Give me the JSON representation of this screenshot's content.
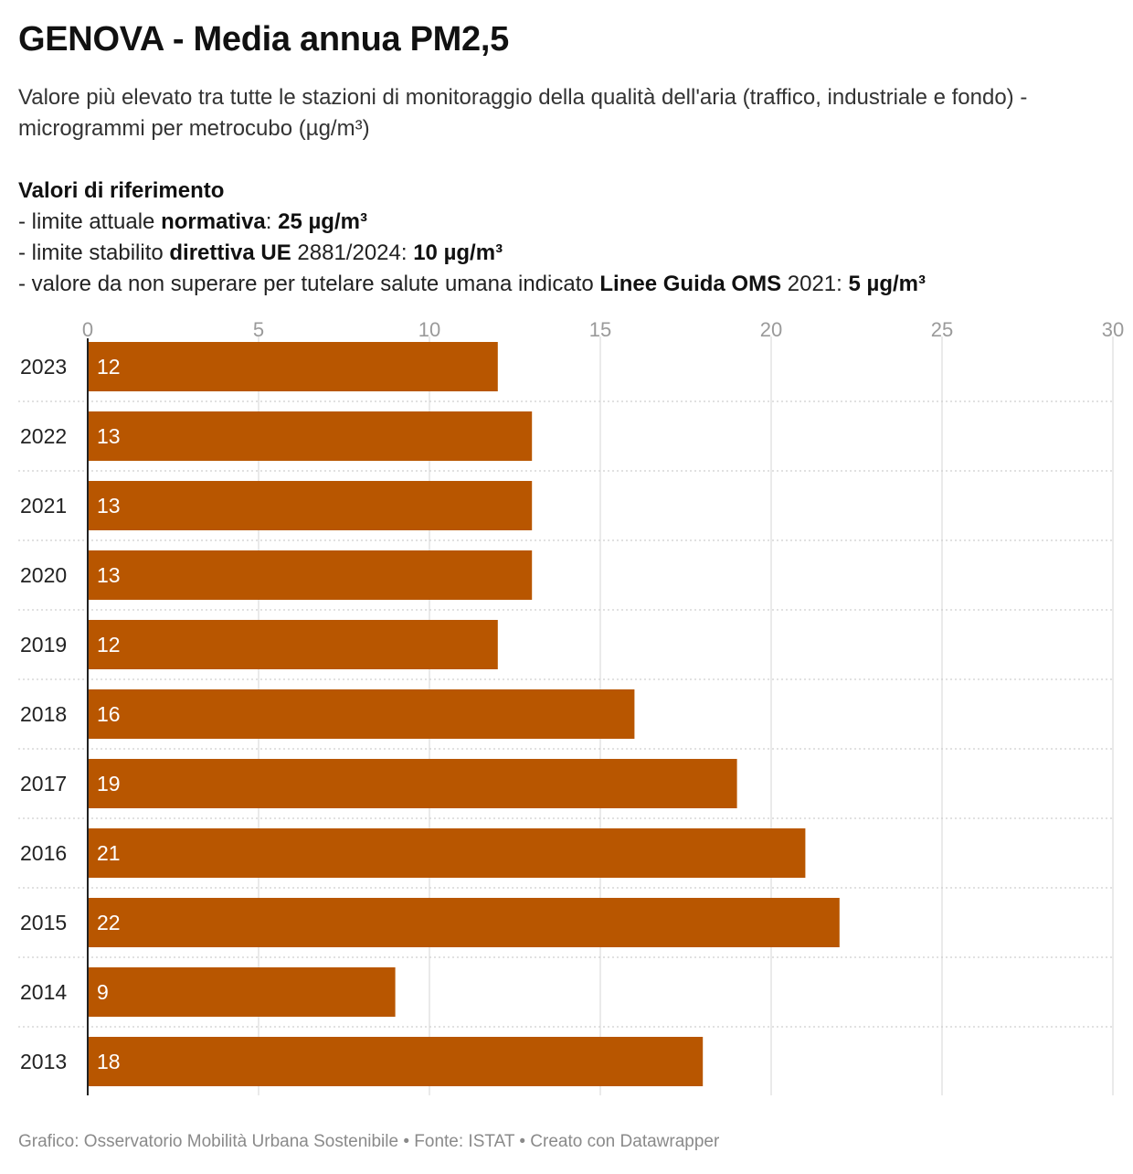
{
  "header": {
    "title": "GENOVA - Media annua PM2,5",
    "subtitle": "Valore più elevato tra tutte le stazioni di monitoraggio della qualità dell'aria (traffico, industriale e fondo) - microgrammi per metrocubo (µg/m³)"
  },
  "references": {
    "heading": "Valori di riferimento",
    "line1": {
      "prefix": "- limite attuale ",
      "bold": "normativa",
      "mid": ": ",
      "value": "25 µg/m³"
    },
    "line2": {
      "prefix": "- limite stabilito ",
      "bold": "direttiva UE",
      "mid": " 2881/2024: ",
      "value": "10 µg/m³"
    },
    "line3": {
      "prefix": "- valore da non superare per tutelare salute umana indicato ",
      "bold": "Linee Guida OMS",
      "mid": " 2021: ",
      "value": "5 µg/m³"
    }
  },
  "chart_data": {
    "type": "bar",
    "orientation": "horizontal",
    "categories": [
      "2023",
      "2022",
      "2021",
      "2020",
      "2019",
      "2018",
      "2017",
      "2016",
      "2015",
      "2014",
      "2013"
    ],
    "values": [
      12,
      13,
      13,
      13,
      12,
      16,
      19,
      21,
      22,
      9,
      18
    ],
    "xlim": [
      0,
      30
    ],
    "xticks": [
      0,
      5,
      10,
      15,
      20,
      25,
      30
    ],
    "bar_color": "#b85600",
    "label_color": "#ffffff",
    "grid": true
  },
  "footer": {
    "text": "Grafico: Osservatorio Mobilità Urbana Sostenibile • Fonte: ISTAT • Creato con Datawrapper"
  }
}
